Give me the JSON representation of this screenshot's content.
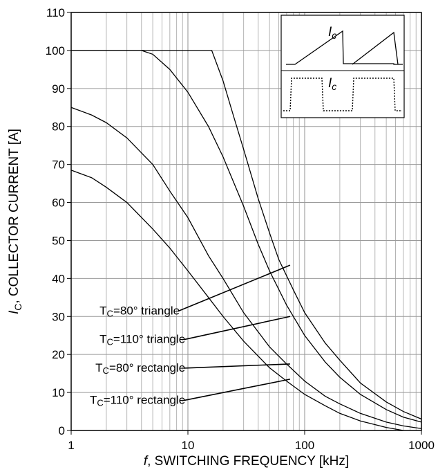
{
  "chart_data": {
    "type": "line",
    "title": "",
    "xlabel_italic": "f",
    "xlabel": ", SWITCHING FREQUENCY [kHz]",
    "ylabel_italic": "I",
    "ylabel_sub": "C",
    "ylabel": ", COLLECTOR CURRENT [A]",
    "x_scale": "log",
    "xlim": [
      1,
      1000
    ],
    "ylim": [
      0,
      110
    ],
    "grid": true,
    "x_ticks": [
      1,
      10,
      100,
      1000
    ],
    "x_tick_labels": [
      "1",
      "10",
      "100",
      "1000"
    ],
    "y_ticks": [
      0,
      10,
      20,
      30,
      40,
      50,
      60,
      70,
      80,
      90,
      100,
      110
    ],
    "y_tick_labels": [
      "0",
      "10",
      "20",
      "30",
      "40",
      "50",
      "60",
      "70",
      "80",
      "90",
      "100",
      "110"
    ],
    "series": [
      {
        "name": "TC=80° triangle",
        "label_main": "T",
        "label_sub": "C",
        "label_rest": "=80° triangle",
        "x": [
          1,
          4,
          16,
          20,
          25,
          30,
          40,
          50,
          60,
          80,
          100,
          150,
          200,
          300,
          500,
          700,
          1000
        ],
        "y": [
          100,
          100,
          100,
          92,
          82,
          74,
          61,
          52,
          45,
          37,
          31,
          23,
          18.5,
          12.5,
          7.5,
          5,
          3
        ]
      },
      {
        "name": "TC=110° triangle",
        "label_main": "T",
        "label_sub": "C",
        "label_rest": "=110° triangle",
        "x": [
          1,
          2,
          3,
          4,
          5,
          7,
          10,
          15,
          20,
          30,
          40,
          50,
          70,
          100,
          150,
          200,
          300,
          500,
          700,
          1000
        ],
        "y": [
          100,
          100,
          100,
          100,
          99,
          95,
          89,
          80,
          72,
          59,
          49,
          42,
          33,
          25,
          18,
          14,
          9.5,
          5.5,
          3.5,
          2.2
        ]
      },
      {
        "name": "TC=80° rectangle",
        "label_main": "T",
        "label_sub": "C",
        "label_rest": "=80° rectangle",
        "x": [
          1,
          1.5,
          2,
          3,
          5,
          7,
          10,
          15,
          20,
          30,
          50,
          70,
          100,
          150,
          200,
          300,
          500,
          700,
          1000
        ],
        "y": [
          85,
          83,
          81,
          77,
          70,
          63,
          56,
          46,
          40,
          31,
          22,
          17.5,
          13,
          9,
          7,
          4.5,
          2.2,
          1.2,
          0.5
        ]
      },
      {
        "name": "TC=110° rectangle",
        "label_main": "T",
        "label_sub": "C",
        "label_rest": "=110° rectangle",
        "x": [
          1,
          1.5,
          2,
          3,
          5,
          7,
          10,
          15,
          20,
          30,
          50,
          70,
          100,
          150,
          200,
          300,
          500,
          700
        ],
        "y": [
          68.5,
          66.5,
          64,
          60,
          53,
          48,
          42,
          35,
          30,
          23.5,
          16.5,
          13,
          9.5,
          6.5,
          4.5,
          2.5,
          0.8,
          0
        ]
      }
    ],
    "annotations": [
      {
        "series": 0,
        "text_pos": {
          "x": 8.5,
          "y": 30.5
        },
        "target": {
          "x": 75,
          "y": 43.5
        }
      },
      {
        "series": 1,
        "text_pos": {
          "x": 9.5,
          "y": 23
        },
        "target": {
          "x": 75,
          "y": 30
        }
      },
      {
        "series": 2,
        "text_pos": {
          "x": 9.5,
          "y": 15.5
        },
        "target": {
          "x": 75,
          "y": 17.5
        }
      },
      {
        "series": 3,
        "text_pos": {
          "x": 9.5,
          "y": 7
        },
        "target": {
          "x": 75,
          "y": 13.5
        }
      }
    ],
    "inset": {
      "top_label_main": "I",
      "top_label_sub": "c",
      "bottom_label_main": "I",
      "bottom_label_sub": "c"
    }
  }
}
